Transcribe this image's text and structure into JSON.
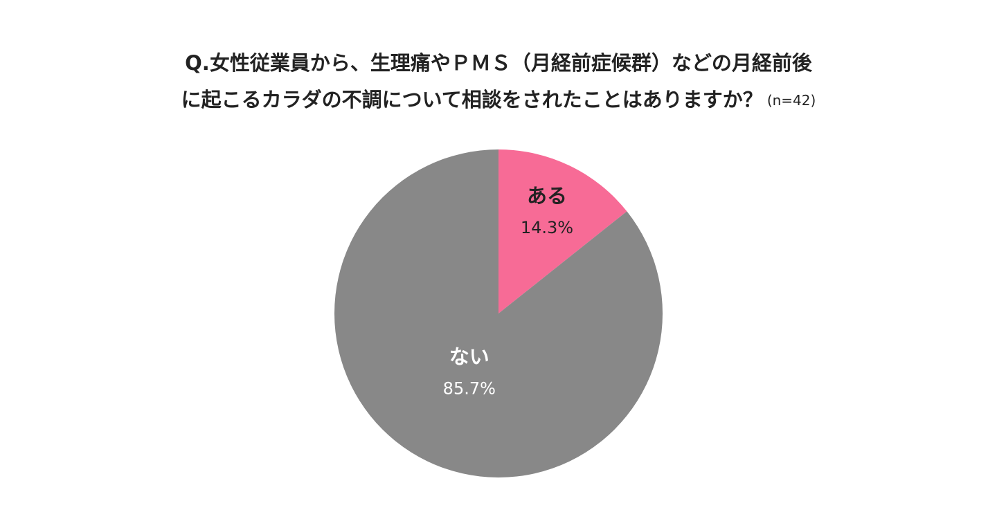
{
  "chart_data": {
    "type": "pie",
    "title": [
      "Q.女性従業員から、生理痛やＰＭＳ（月経前症候群）などの月経前後",
      "に起こるカラダの不調について相談をされたことはありますか？"
    ],
    "subtitle": "(n=42)",
    "categories": [
      "ある",
      "ない"
    ],
    "values": [
      14.3,
      85.7
    ],
    "value_labels": [
      "14.3%",
      "85.7%"
    ],
    "colors": [
      "#f76b96",
      "#888888"
    ]
  }
}
